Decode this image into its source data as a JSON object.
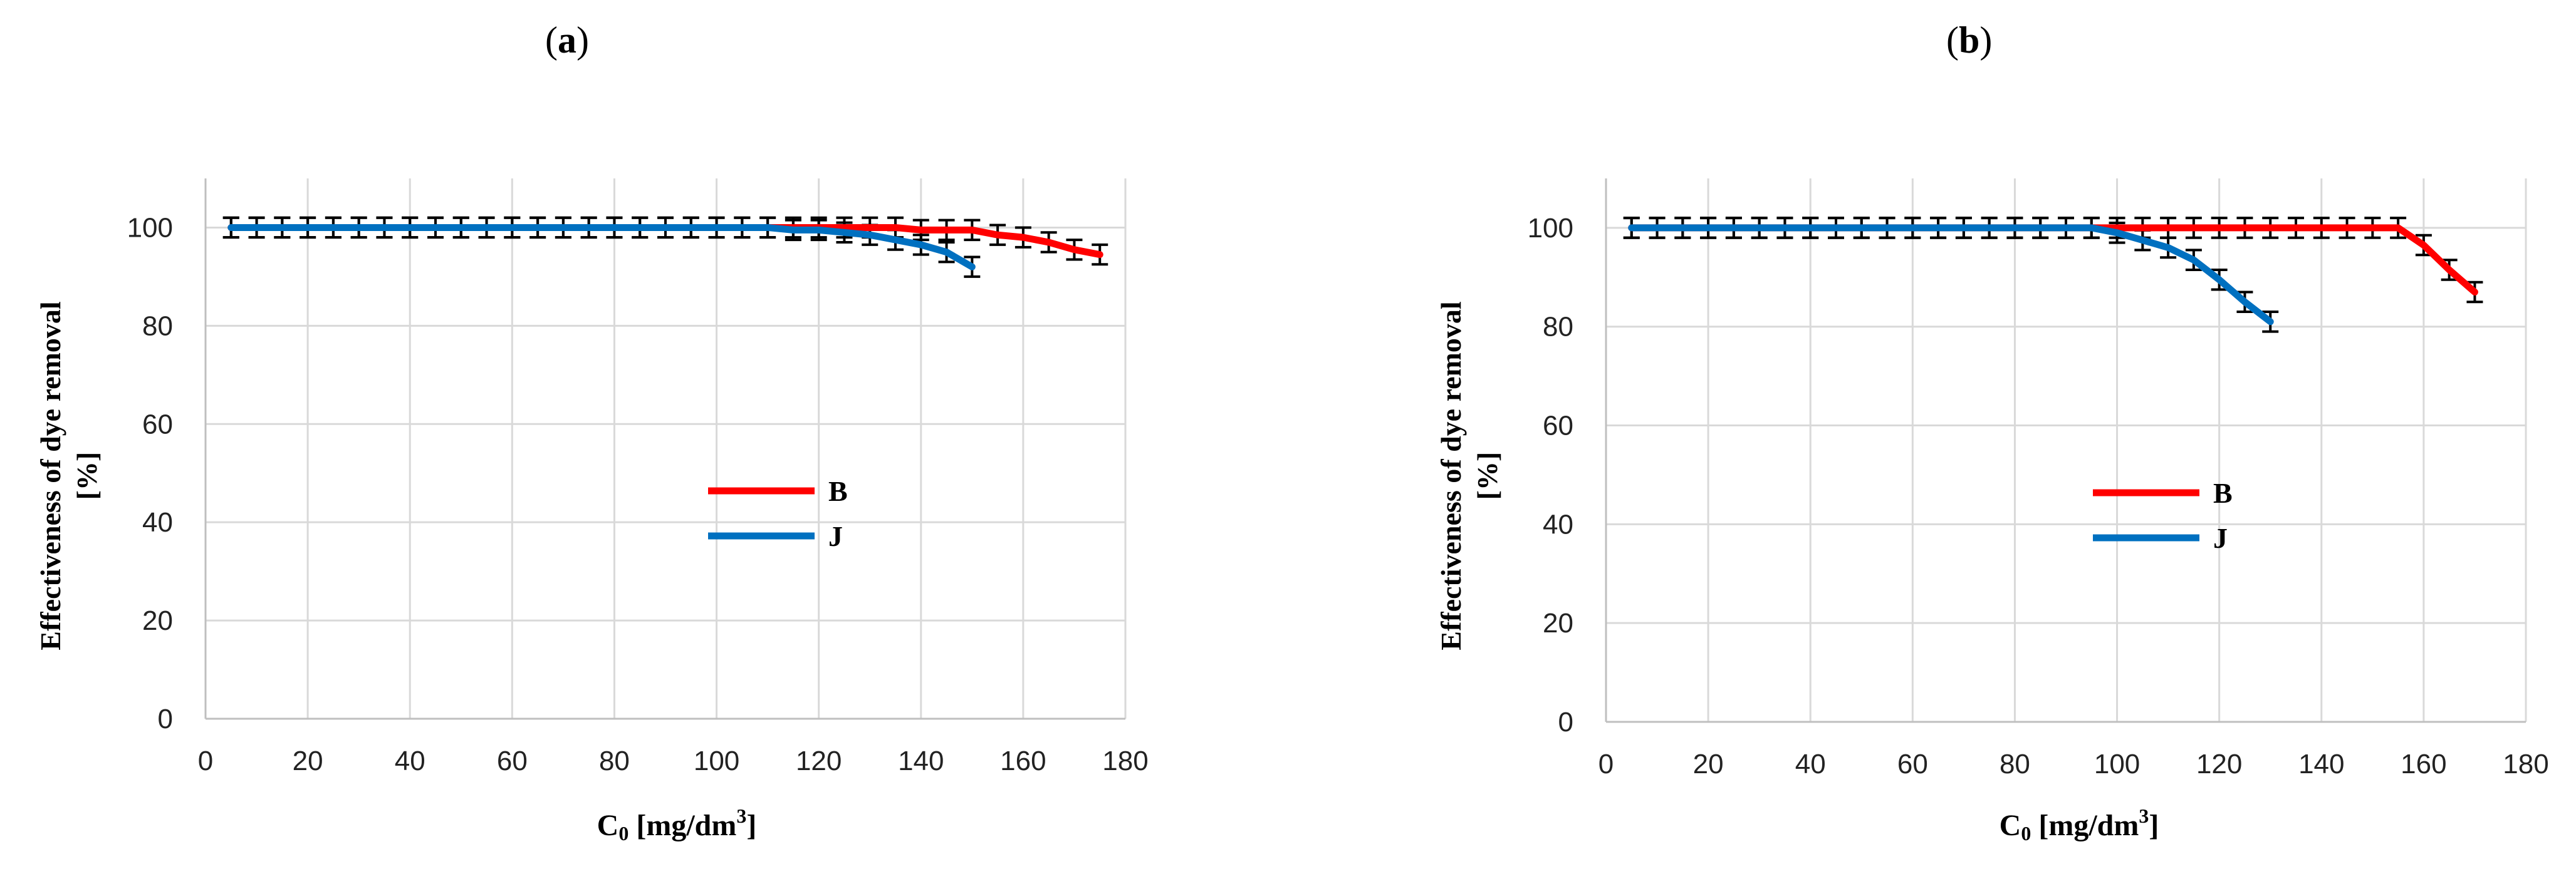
{
  "panels": [
    {
      "label_open": "(",
      "label_letter": "a",
      "label_close": ")"
    },
    {
      "label_open": "(",
      "label_letter": "b",
      "label_close": ")"
    }
  ],
  "axis": {
    "ylabel_line1": "Effectiveness of dye removal",
    "ylabel_line2": "[%]",
    "xlabel_prefix": "C",
    "xlabel_sub": "0",
    "xlabel_mid": " [mg/dm",
    "xlabel_sup": "3",
    "xlabel_suffix": "]"
  },
  "colors": {
    "B": "#ff0000",
    "J": "#0070c0",
    "grid": "#d9d9d9",
    "errorbar": "#000000"
  },
  "chart_data": [
    {
      "type": "line",
      "panel": "a",
      "xlim": [
        0,
        180
      ],
      "ylim": [
        0,
        110
      ],
      "xticks": [
        0,
        20,
        40,
        60,
        80,
        100,
        120,
        140,
        160,
        180
      ],
      "yticks": [
        0,
        20,
        40,
        60,
        80,
        100
      ],
      "grid": true,
      "legend_position": "center",
      "error": 2,
      "series": [
        {
          "name": "B",
          "color": "#ff0000",
          "x": [
            5,
            10,
            15,
            20,
            25,
            30,
            35,
            40,
            45,
            50,
            55,
            60,
            65,
            70,
            75,
            80,
            85,
            90,
            95,
            100,
            105,
            110,
            115,
            120,
            125,
            130,
            135,
            140,
            145,
            150,
            155,
            160,
            165,
            170,
            175
          ],
          "y": [
            100,
            100,
            100,
            100,
            100,
            100,
            100,
            100,
            100,
            100,
            100,
            100,
            100,
            100,
            100,
            100,
            100,
            100,
            100,
            100,
            100,
            100,
            100,
            100,
            100,
            100,
            100,
            99.5,
            99.5,
            99.5,
            98.5,
            98,
            97,
            95.5,
            94.5
          ]
        },
        {
          "name": "J",
          "color": "#0070c0",
          "x": [
            5,
            10,
            15,
            20,
            25,
            30,
            35,
            40,
            45,
            50,
            55,
            60,
            65,
            70,
            75,
            80,
            85,
            90,
            95,
            100,
            105,
            110,
            115,
            120,
            125,
            130,
            135,
            140,
            145,
            150
          ],
          "y": [
            100,
            100,
            100,
            100,
            100,
            100,
            100,
            100,
            100,
            100,
            100,
            100,
            100,
            100,
            100,
            100,
            100,
            100,
            100,
            100,
            100,
            100,
            99.5,
            99.5,
            99,
            98.5,
            97.5,
            96.5,
            95,
            92
          ]
        }
      ]
    },
    {
      "type": "line",
      "panel": "b",
      "xlim": [
        0,
        180
      ],
      "ylim": [
        0,
        110
      ],
      "xticks": [
        0,
        20,
        40,
        60,
        80,
        100,
        120,
        140,
        160,
        180
      ],
      "yticks": [
        0,
        20,
        40,
        60,
        80,
        100
      ],
      "grid": true,
      "legend_position": "center",
      "error": 2,
      "series": [
        {
          "name": "B",
          "color": "#ff0000",
          "x": [
            5,
            10,
            15,
            20,
            25,
            30,
            35,
            40,
            45,
            50,
            55,
            60,
            65,
            70,
            75,
            80,
            85,
            90,
            95,
            100,
            105,
            110,
            115,
            120,
            125,
            130,
            135,
            140,
            145,
            150,
            155,
            160,
            165,
            170
          ],
          "y": [
            100,
            100,
            100,
            100,
            100,
            100,
            100,
            100,
            100,
            100,
            100,
            100,
            100,
            100,
            100,
            100,
            100,
            100,
            100,
            100,
            100,
            100,
            100,
            100,
            100,
            100,
            100,
            100,
            100,
            100,
            100,
            96.5,
            91.5,
            87
          ]
        },
        {
          "name": "J",
          "color": "#0070c0",
          "x": [
            5,
            10,
            15,
            20,
            25,
            30,
            35,
            40,
            45,
            50,
            55,
            60,
            65,
            70,
            75,
            80,
            85,
            90,
            95,
            100,
            105,
            110,
            115,
            120,
            125,
            130
          ],
          "y": [
            100,
            100,
            100,
            100,
            100,
            100,
            100,
            100,
            100,
            100,
            100,
            100,
            100,
            100,
            100,
            100,
            100,
            100,
            100,
            99,
            97.5,
            96,
            93.5,
            89.5,
            85,
            81
          ]
        }
      ]
    }
  ]
}
